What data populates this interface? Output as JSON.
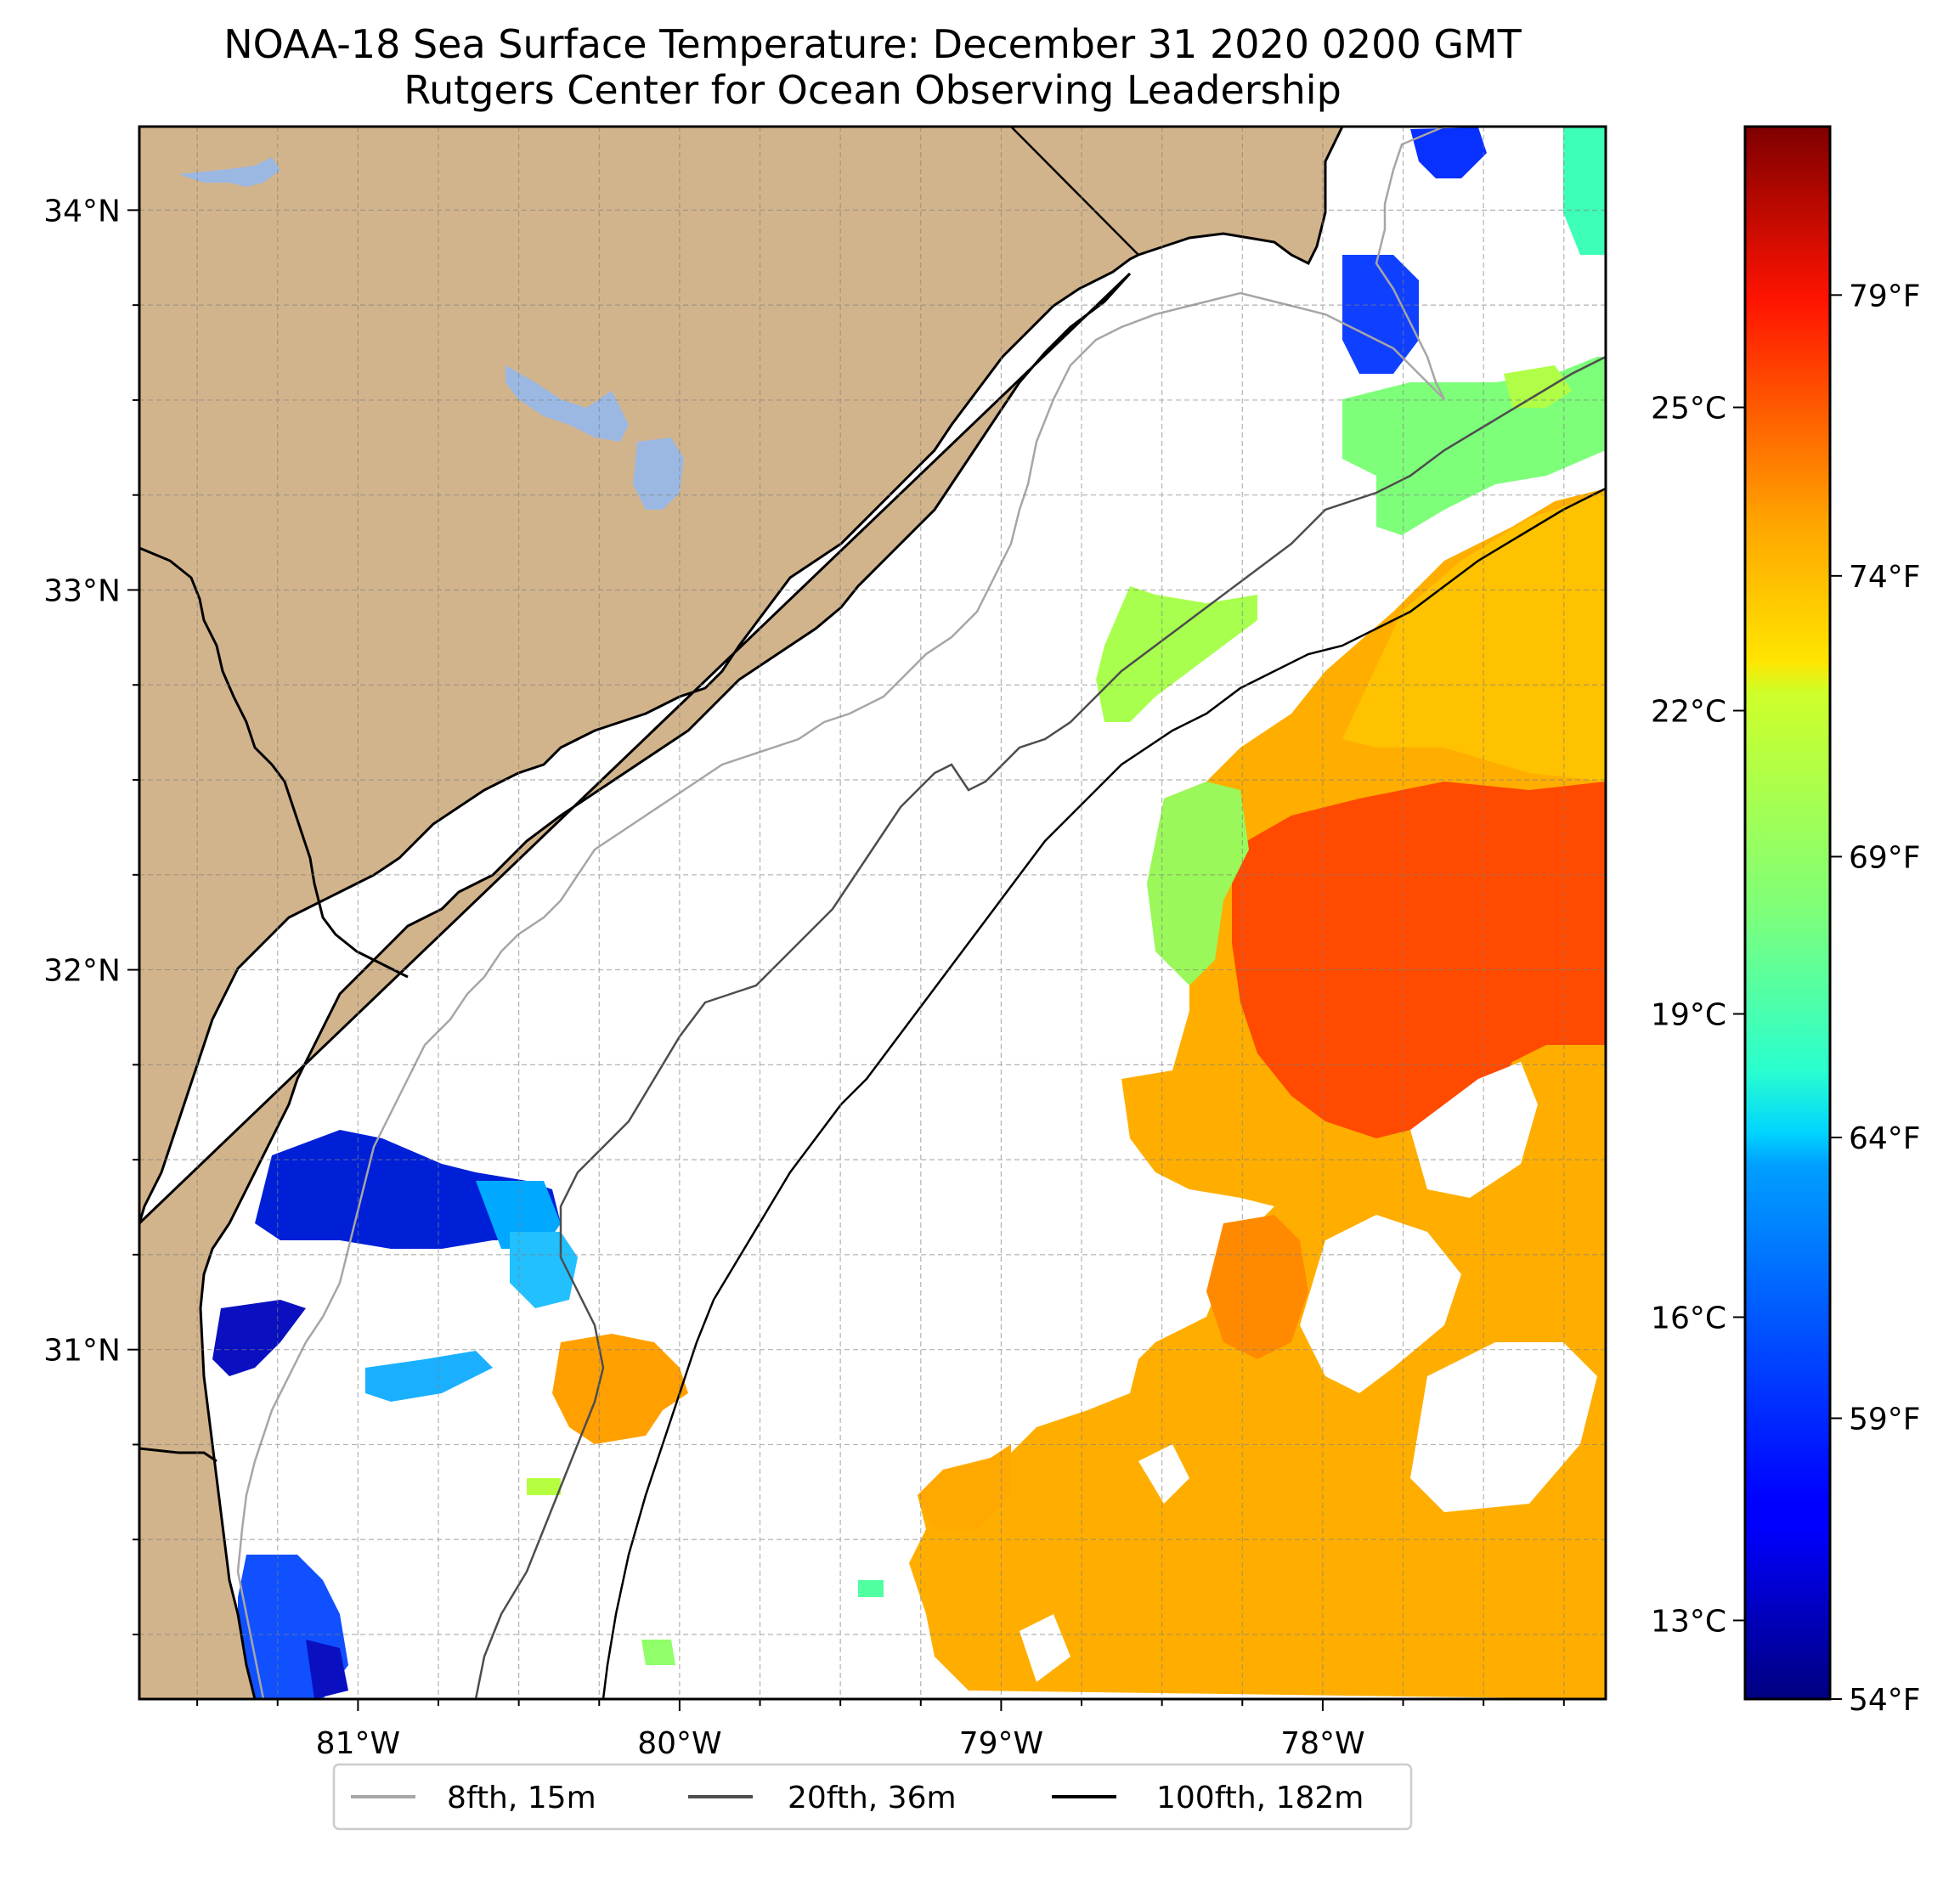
{
  "title": {
    "line1": "NOAA-18 Sea Surface Temperature: December 31 2020 0200 GMT",
    "line2": "Rutgers Center for Ocean Observing Leadership"
  },
  "map": {
    "lon_range": [
      -81.68,
      -77.12
    ],
    "lat_range": [
      30.08,
      34.22
    ],
    "lon_ticks": [
      {
        "value": -81,
        "label": "81°W"
      },
      {
        "value": -80,
        "label": "80°W"
      },
      {
        "value": -79,
        "label": "79°W"
      },
      {
        "value": -78,
        "label": "78°W"
      }
    ],
    "lat_ticks": [
      {
        "value": 34,
        "label": "34°N"
      },
      {
        "value": 33,
        "label": "33°N"
      },
      {
        "value": 32,
        "label": "32°N"
      },
      {
        "value": 31,
        "label": "31°N"
      }
    ],
    "land_color": "#d2b48c",
    "water_color": "#9bb8e3",
    "grid": true
  },
  "colorbar": {
    "colormap": "jet",
    "celsius_ticks": [
      {
        "value": 13,
        "label": "13°C"
      },
      {
        "value": 16,
        "label": "16°C"
      },
      {
        "value": 19,
        "label": "19°C"
      },
      {
        "value": 22,
        "label": "22°C"
      },
      {
        "value": 25,
        "label": "25°C"
      }
    ],
    "fahrenheit_ticks": [
      {
        "value": 54,
        "label": "54°F"
      },
      {
        "value": 59,
        "label": "59°F"
      },
      {
        "value": 64,
        "label": "64°F"
      },
      {
        "value": 69,
        "label": "69°F"
      },
      {
        "value": 74,
        "label": "74°F"
      },
      {
        "value": 79,
        "label": "79°F"
      }
    ],
    "range_f": [
      54,
      82
    ]
  },
  "legend": {
    "items": [
      {
        "label": "8fth, 15m",
        "color": "#a6a6a6"
      },
      {
        "label": "20fth, 36m",
        "color": "#4d4d4d"
      },
      {
        "label": "100fth, 182m",
        "color": "#000000"
      }
    ]
  }
}
